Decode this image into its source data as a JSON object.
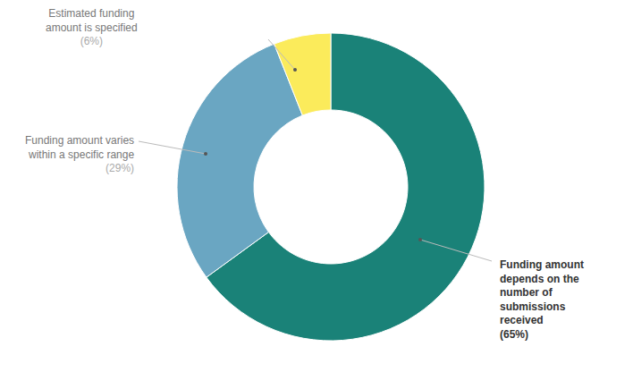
{
  "chart_data": {
    "type": "pie",
    "categories": [
      "Funding amount depends on the number of submissions received",
      "Funding amount varies within a specific range",
      "Estimated funding amount is specified"
    ],
    "values": [
      65,
      29,
      6
    ],
    "value_labels": [
      "(65%)",
      "(29%)",
      "(6%)"
    ],
    "colors": [
      "#1a8278",
      "#6aa6c2",
      "#fbeb5b"
    ],
    "data_labels": true
  }
}
